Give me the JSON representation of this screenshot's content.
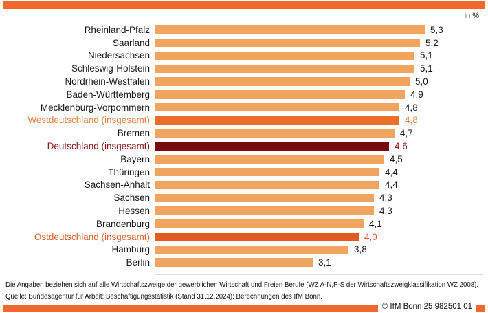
{
  "header": {
    "unit_label": "in %"
  },
  "chart_data": {
    "type": "bar",
    "orientation": "horizontal",
    "unit": "in %",
    "axis_max": 6.0,
    "grid": false,
    "legend": false,
    "categories": [
      "Rheinland-Pfalz",
      "Saarland",
      "Niedersachsen",
      "Schleswig-Holstein",
      "Nordrhein-Westfalen",
      "Baden-Württemberg",
      "Mecklenburg-Vorpommern",
      "Westdeutschland (insgesamt)",
      "Bremen",
      "Deutschland (insgesamt)",
      "Bayern",
      "Thüringen",
      "Sachsen-Anhalt",
      "Sachsen",
      "Hessen",
      "Brandenburg",
      "Ostdeutschland (insgesamt)",
      "Hamburg",
      "Berlin"
    ],
    "values": [
      5.3,
      5.2,
      5.1,
      5.1,
      5.0,
      4.9,
      4.8,
      4.8,
      4.7,
      4.6,
      4.5,
      4.4,
      4.4,
      4.3,
      4.3,
      4.1,
      4.0,
      3.8,
      3.1
    ],
    "rows": [
      {
        "label": "Rheinland-Pfalz",
        "value": 5.3,
        "display": "5,3",
        "style": "default"
      },
      {
        "label": "Saarland",
        "value": 5.2,
        "display": "5,2",
        "style": "default"
      },
      {
        "label": "Niedersachsen",
        "value": 5.1,
        "display": "5,1",
        "style": "default"
      },
      {
        "label": "Schleswig-Holstein",
        "value": 5.1,
        "display": "5,1",
        "style": "default"
      },
      {
        "label": "Nordrhein-Westfalen",
        "value": 5.0,
        "display": "5,0",
        "style": "default"
      },
      {
        "label": "Baden-Württemberg",
        "value": 4.9,
        "display": "4,9",
        "style": "default"
      },
      {
        "label": "Mecklenburg-Vorpommern",
        "value": 4.8,
        "display": "4,8",
        "style": "default"
      },
      {
        "label": "Westdeutschland (insgesamt)",
        "value": 4.8,
        "display": "4,8",
        "style": "west"
      },
      {
        "label": "Bremen",
        "value": 4.7,
        "display": "4,7",
        "style": "default"
      },
      {
        "label": "Deutschland (insgesamt)",
        "value": 4.6,
        "display": "4,6",
        "style": "germany"
      },
      {
        "label": "Bayern",
        "value": 4.5,
        "display": "4,5",
        "style": "default"
      },
      {
        "label": "Thüringen",
        "value": 4.4,
        "display": "4,4",
        "style": "default"
      },
      {
        "label": "Sachsen-Anhalt",
        "value": 4.4,
        "display": "4,4",
        "style": "default"
      },
      {
        "label": "Sachsen",
        "value": 4.3,
        "display": "4,3",
        "style": "default"
      },
      {
        "label": "Hessen",
        "value": 4.3,
        "display": "4,3",
        "style": "default"
      },
      {
        "label": "Brandenburg",
        "value": 4.1,
        "display": "4,1",
        "style": "default"
      },
      {
        "label": "Ostdeutschland (insgesamt)",
        "value": 4.0,
        "display": "4,0",
        "style": "east"
      },
      {
        "label": "Hamburg",
        "value": 3.8,
        "display": "3,8",
        "style": "default"
      },
      {
        "label": "Berlin",
        "value": 3.1,
        "display": "3,1",
        "style": "default"
      }
    ]
  },
  "footer": {
    "note": "Die Angaben beziehen sich auf alle Wirtschaftszweige der gewerblichen Wirtschaft und Freien Berufe (WZ A-N,P-S der Wirtschaftszweigklassifikation WZ 2008).",
    "source": "Quelle: Bundesagentur für Arbeit: Beschäftigungsstatistik (Stand 31.12.2024); Berechnungen des IfM Bonn.",
    "copyright": "© IfM Bonn 25 982501 01"
  },
  "colors": {
    "stripe": "#F2672F",
    "default_bar": "#F1A45F",
    "default_text": "#1a1a1a",
    "west_bar": "#EA6E2C",
    "west_text": "#E8813F",
    "east_bar": "#E45A23",
    "east_text": "#E2602F",
    "germany_bar": "#770B10",
    "germany_text": "#8B1513",
    "axis_line": "#E6D7BF"
  }
}
